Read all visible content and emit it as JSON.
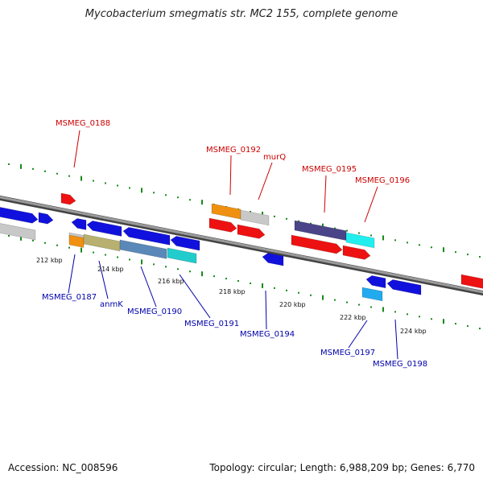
{
  "title": "Mycobacterium smegmatis str. MC2 155, complete genome",
  "footer": {
    "accession": "Accession: NC_008596",
    "topology": "Topology: circular; Length: 6,988,209 bp; Genes: 6,770"
  },
  "colors": {
    "backbone": "#888888",
    "forward_ticks": "#1a8a1a",
    "reverse_ticks": "#1a8a1a",
    "forward_label": "#cc0000",
    "reverse_label": "#0000aa",
    "red": "#ee1111",
    "blue": "#1111dd",
    "orange": "#f09010",
    "gray": "#c8c8c8",
    "olive": "#b8b070",
    "steel": "#5a88b8",
    "cyan": "#22cccc",
    "bright_cyan": "#22eeee",
    "purple": "#4a4488",
    "light_blue": "#22aaee"
  },
  "ruler": [
    "212 kbp",
    "214 kbp",
    "216 kbp",
    "218 kbp",
    "220 kbp",
    "222 kbp",
    "224 kbp"
  ],
  "forward_labels": [
    "MSMEG_0188",
    "MSMEG_0192",
    "murQ",
    "MSMEG_0195",
    "MSMEG_0196"
  ],
  "reverse_labels": [
    "MSMEG_0187",
    "anmK",
    "MSMEG_0190",
    "MSMEG_0191",
    "MSMEG_0194",
    "MSMEG_0197",
    "MSMEG_0198"
  ]
}
